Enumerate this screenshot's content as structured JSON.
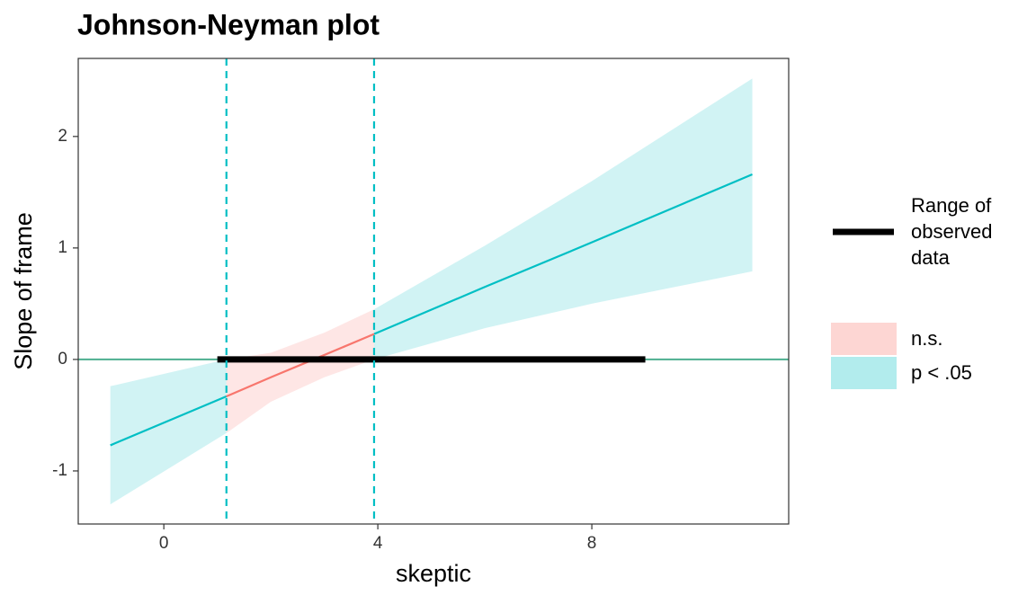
{
  "chart_data": {
    "type": "johnson-neyman",
    "title": "Johnson-Neyman plot",
    "x_label": "skeptic",
    "y_label": "Slope of frame",
    "x": [
      -1,
      1.17,
      2,
      3,
      3.93,
      6,
      8,
      11
    ],
    "series": [
      {
        "name": "p < .05",
        "color": "#00bfc4",
        "band_color": "#00bfc4",
        "values": [
          -0.77,
          -0.331,
          null,
          null,
          0.228,
          0.65,
          1.05,
          1.66
        ],
        "lower": [
          -1.3,
          -0.66,
          null,
          null,
          0.0,
          0.28,
          0.5,
          0.79
        ],
        "upper": [
          -0.24,
          0.0,
          null,
          null,
          0.45,
          1.02,
          1.6,
          2.52
        ]
      },
      {
        "name": "n.s.",
        "color": "#f8766d",
        "band_color": "#f8766d",
        "values": [
          null,
          -0.331,
          -0.16,
          0.04,
          0.228,
          null,
          null,
          null
        ],
        "lower": [
          null,
          -0.66,
          -0.38,
          -0.16,
          0.0,
          null,
          null,
          null
        ],
        "upper": [
          null,
          0.0,
          0.06,
          0.24,
          0.45,
          null,
          null,
          null
        ]
      }
    ],
    "observed_range": {
      "name": "Range of observed data",
      "color": "#000000",
      "values": [
        1,
        9
      ]
    },
    "jn_interval": [
      1.17,
      3.93
    ],
    "reference_line": 0,
    "xlim": [
      -1.6,
      11.68
    ],
    "ylim": [
      -1.476,
      2.7
    ],
    "xticks": [
      0,
      4,
      8
    ],
    "yticks": [
      -1,
      0,
      1,
      2
    ]
  }
}
